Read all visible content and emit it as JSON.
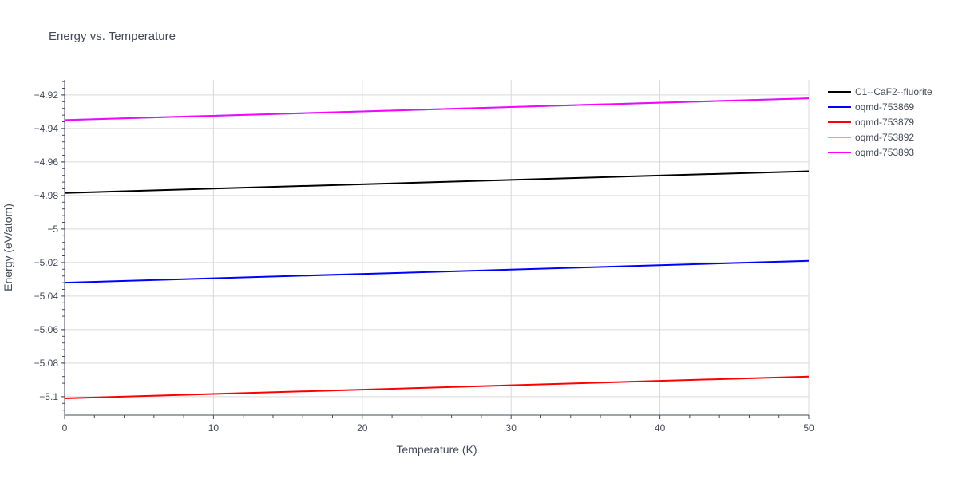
{
  "chart_data": {
    "type": "line",
    "title": "Energy vs. Temperature",
    "xlabel": "Temperature (K)",
    "ylabel": "Energy (eV/atom)",
    "xlim": [
      0,
      50
    ],
    "ylim": [
      -5.111,
      -4.911
    ],
    "x_ticks": [
      0,
      10,
      20,
      30,
      40,
      50
    ],
    "x_tick_labels": [
      "0",
      "10",
      "20",
      "30",
      "40",
      "50"
    ],
    "y_ticks": [
      -4.92,
      -4.94,
      -4.96,
      -4.98,
      -5,
      -5.02,
      -5.04,
      -5.06,
      -5.08,
      -5.1
    ],
    "y_tick_labels": [
      "−4.92",
      "−4.94",
      "−4.96",
      "−4.98",
      "−5",
      "−5.02",
      "−5.04",
      "−5.06",
      "−5.08",
      "−5.1"
    ],
    "grid": true,
    "legend_position": "top-right, outside plot",
    "series": [
      {
        "name": "C1--CaF2--fluorite",
        "color": "#000000",
        "x": [
          0,
          50
        ],
        "values": [
          -4.9785,
          -4.9655
        ]
      },
      {
        "name": "oqmd-753869",
        "color": "#0000ff",
        "x": [
          0,
          50
        ],
        "values": [
          -5.032,
          -5.019
        ]
      },
      {
        "name": "oqmd-753879",
        "color": "#ff0000",
        "x": [
          0,
          50
        ],
        "values": [
          -5.101,
          -5.088
        ]
      },
      {
        "name": "oqmd-753892",
        "color": "#00ffff",
        "x": [
          0,
          50
        ],
        "values": [
          -4.935,
          -4.922
        ]
      },
      {
        "name": "oqmd-753893",
        "color": "#ff00ff",
        "x": [
          0,
          50
        ],
        "values": [
          -4.935,
          -4.922
        ]
      }
    ]
  }
}
